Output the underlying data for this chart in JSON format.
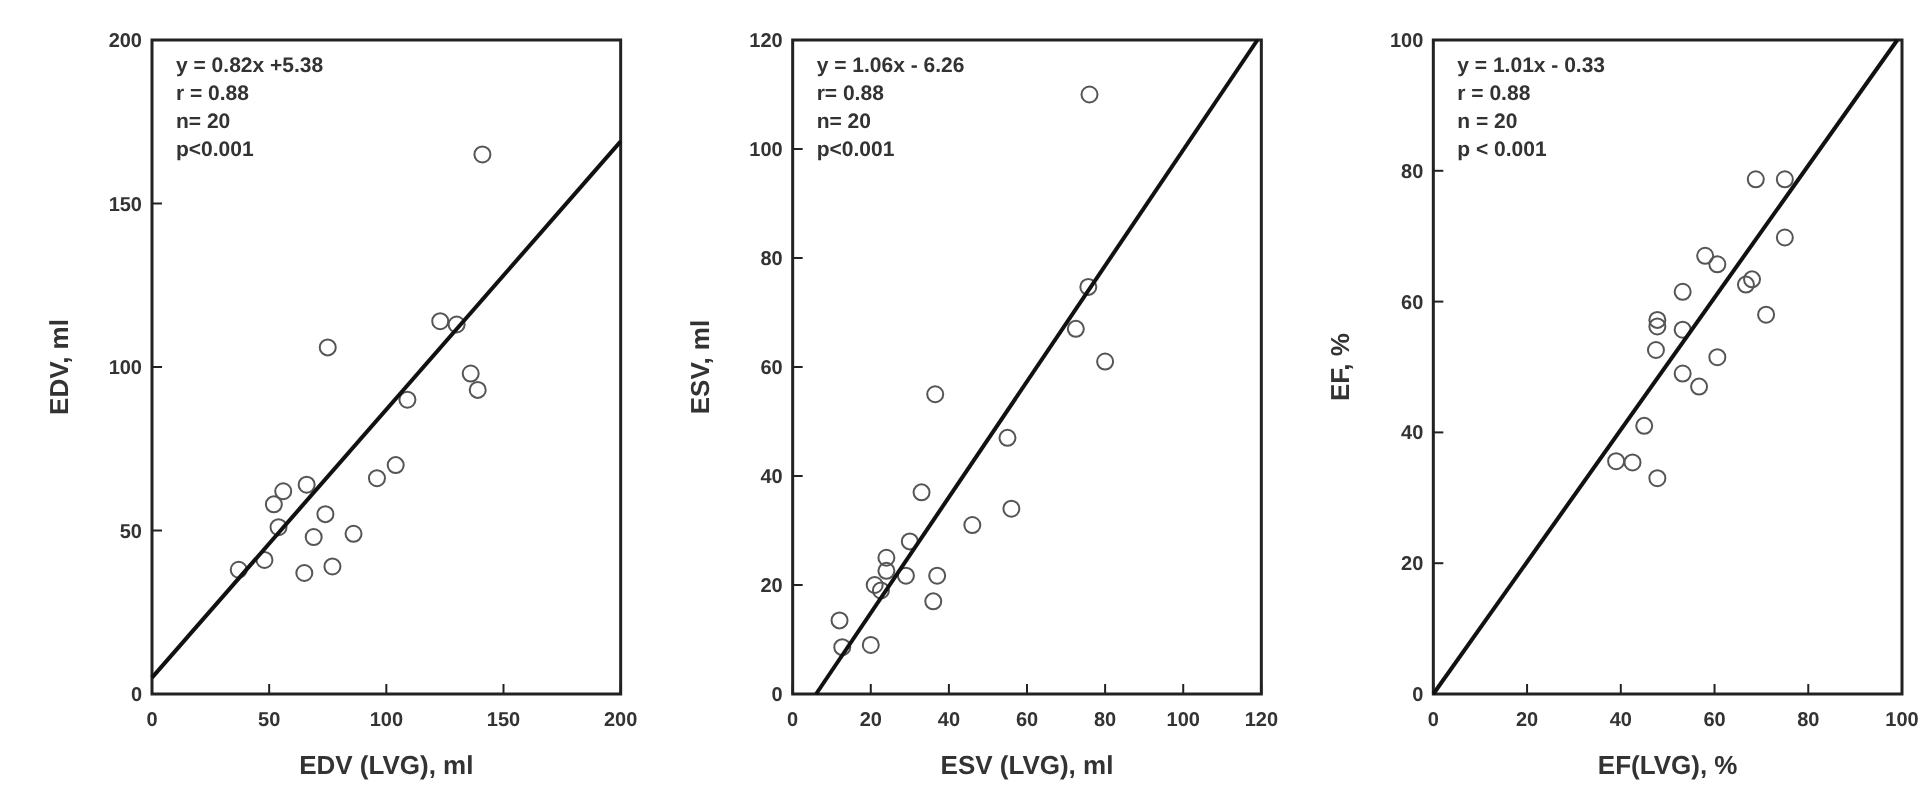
{
  "chart_data": [
    {
      "type": "scatter",
      "xlabel": "EDV (LVG),  ml",
      "ylabel": "EDV, ml",
      "xlim": [
        0,
        200
      ],
      "ylim": [
        0,
        200
      ],
      "xticks": [
        0,
        50,
        100,
        150,
        200
      ],
      "yticks": [
        0,
        50,
        100,
        150,
        200
      ],
      "annotations": [
        "y = 0.82x +5.38",
        "r = 0.88",
        "n= 20",
        "p<0.001"
      ],
      "series": [
        {
          "color": "#555555",
          "marker": "circle",
          "x": [
            141,
            75,
            123,
            130,
            136,
            139,
            109,
            104,
            96,
            66,
            56,
            52,
            74,
            54,
            69,
            86,
            37,
            48,
            65,
            77
          ],
          "values": [
            165,
            106,
            114,
            113,
            98,
            93,
            90,
            70,
            66,
            64,
            62,
            58,
            55,
            51,
            48,
            49,
            38,
            41,
            37,
            39
          ]
        },
        {
          "type": "line",
          "color": "#111111",
          "x": [
            0,
            200
          ],
          "values": [
            5,
            169
          ]
        }
      ]
    },
    {
      "type": "scatter",
      "xlabel": "ESV (LVG),  ml",
      "ylabel": "ESV, ml",
      "xlim": [
        0,
        120
      ],
      "ylim": [
        0,
        120
      ],
      "xticks": [
        0,
        20,
        40,
        60,
        80,
        100,
        120
      ],
      "yticks": [
        0,
        20,
        40,
        60,
        80,
        100,
        120
      ],
      "annotations": [
        "y = 1.06x - 6.26",
        "r= 0.88",
        "n= 20",
        "p<0.001"
      ],
      "series": [
        {
          "color": "#555555",
          "marker": "circle",
          "x": [
            76,
            75.7,
            72.5,
            80,
            36.5,
            55,
            33,
            56,
            46,
            30,
            24,
            24,
            29,
            37,
            36,
            22.6,
            12,
            12.7,
            20,
            21
          ],
          "values": [
            110,
            74.7,
            67,
            61,
            55,
            47,
            37,
            34,
            31,
            28,
            25,
            22.6,
            21.7,
            21.7,
            17,
            19,
            13.5,
            8.6,
            9,
            20
          ]
        },
        {
          "type": "line",
          "color": "#111111",
          "x": [
            6,
            119
          ],
          "values": [
            0,
            120
          ]
        }
      ]
    },
    {
      "type": "scatter",
      "xlabel": "EF(LVG), %",
      "ylabel": "EF, %",
      "xlim": [
        0,
        100
      ],
      "ylim": [
        0,
        100
      ],
      "xticks": [
        0,
        20,
        40,
        60,
        80,
        100
      ],
      "yticks": [
        0,
        20,
        40,
        60,
        80,
        100
      ],
      "annotations": [
        "y = 1.01x - 0.33",
        "r = 0.88",
        "n = 20",
        "p < 0.001"
      ],
      "series": [
        {
          "color": "#555555",
          "marker": "circle",
          "x": [
            68.8,
            75,
            75,
            58,
            60.6,
            68,
            53.2,
            71,
            47.8,
            47.8,
            53.2,
            47.5,
            60.6,
            53.2,
            56.7,
            45,
            39,
            42.5,
            47.8,
            66.7
          ],
          "values": [
            78.7,
            78.7,
            69.8,
            67,
            65.7,
            63.4,
            61.5,
            58,
            57.2,
            56.2,
            55.7,
            52.6,
            51.5,
            49,
            47,
            41,
            35.6,
            35.4,
            33,
            62.6
          ]
        },
        {
          "type": "line",
          "color": "#111111",
          "x": [
            0,
            99
          ],
          "values": [
            0,
            100
          ]
        }
      ]
    }
  ]
}
